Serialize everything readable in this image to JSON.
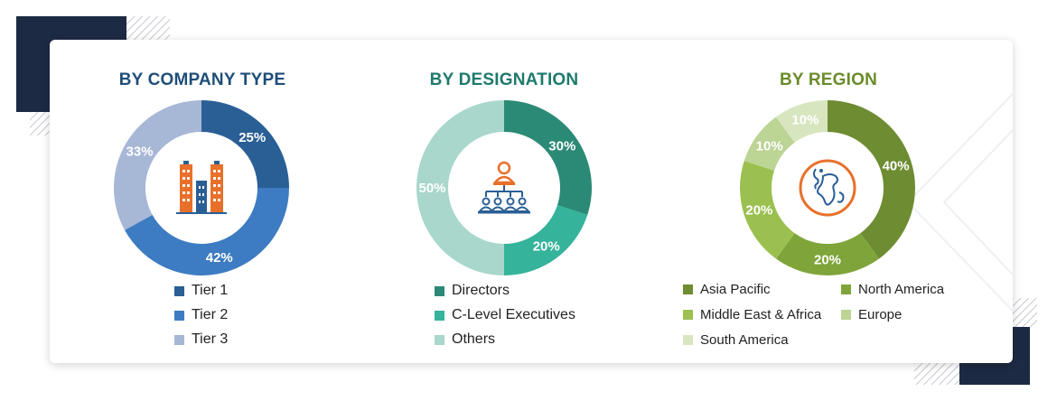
{
  "charts": [
    {
      "id": "company",
      "title": "BY COMPANY TYPE",
      "title_color": "#1f4e79",
      "icon": "buildings-icon",
      "chart_data": {
        "type": "pie",
        "title": "BY COMPANY TYPE",
        "series": [
          {
            "name": "Tier 1",
            "value": 25,
            "label": "25%",
            "color": "#2a5f96"
          },
          {
            "name": "Tier 2",
            "value": 42,
            "label": "42%",
            "color": "#3d7cc2"
          },
          {
            "name": "Tier 3",
            "value": 33,
            "label": "33%",
            "color": "#a7b7d6"
          }
        ]
      }
    },
    {
      "id": "designation",
      "title": "BY DESIGNATION",
      "title_color": "#1e7a6c",
      "icon": "org-chart-icon",
      "chart_data": {
        "type": "pie",
        "title": "BY DESIGNATION",
        "series": [
          {
            "name": "Directors",
            "value": 30,
            "label": "30%",
            "color": "#2b8a76"
          },
          {
            "name": "C-Level Executives",
            "value": 20,
            "label": "20%",
            "color": "#35b39b"
          },
          {
            "name": "Others",
            "value": 50,
            "label": "50%",
            "color": "#a9d7cc"
          }
        ]
      }
    },
    {
      "id": "region",
      "title": "BY REGION",
      "title_color": "#6b8c2c",
      "icon": "globe-icon",
      "chart_data": {
        "type": "pie",
        "title": "BY REGION",
        "series": [
          {
            "name": "Asia Pacific",
            "value": 40,
            "label": "40%",
            "color": "#6e8c32"
          },
          {
            "name": "North America",
            "value": 20,
            "label": "20%",
            "color": "#7fa53a"
          },
          {
            "name": "Middle East & Africa",
            "value": 20,
            "label": "20%",
            "color": "#9cc050"
          },
          {
            "name": "Europe",
            "value": 10,
            "label": "10%",
            "color": "#bcd494"
          },
          {
            "name": "South America",
            "value": 10,
            "label": "10%",
            "color": "#d8e6c0"
          }
        ]
      }
    }
  ]
}
